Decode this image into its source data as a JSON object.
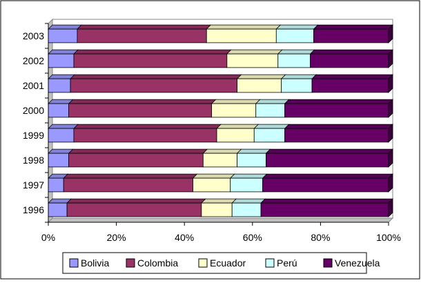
{
  "chart_data": {
    "type": "bar",
    "orientation": "horizontal",
    "stacking": "percent",
    "categories": [
      "1996",
      "1997",
      "1998",
      "1999",
      "2000",
      "2001",
      "2002",
      "2003"
    ],
    "series": [
      {
        "name": "Bolivia",
        "color": "#9999FF",
        "values": [
          5.5,
          4.5,
          6,
          7.5,
          6,
          6.5,
          7.5,
          8.5
        ]
      },
      {
        "name": "Colombia",
        "color": "#993366",
        "values": [
          39.5,
          38,
          39.5,
          42,
          42,
          49,
          45,
          38
        ]
      },
      {
        "name": "Ecuador",
        "color": "#FFFFCC",
        "values": [
          9,
          11,
          10,
          11,
          13,
          13,
          15,
          20.5
        ]
      },
      {
        "name": "Perú",
        "color": "#CCFFFF",
        "values": [
          8.5,
          9.5,
          8.5,
          9,
          8.5,
          9,
          9.5,
          11
        ]
      },
      {
        "name": "Venezuela",
        "color": "#660066",
        "values": [
          37.5,
          37,
          36,
          30.5,
          30.5,
          22.5,
          23,
          22
        ]
      }
    ],
    "x_ticks": [
      "0%",
      "20%",
      "40%",
      "60%",
      "80%",
      "100%"
    ],
    "xlim": [
      0,
      100
    ],
    "grid": false,
    "legend_position": "bottom",
    "title": "",
    "xlabel": "",
    "ylabel": ""
  }
}
